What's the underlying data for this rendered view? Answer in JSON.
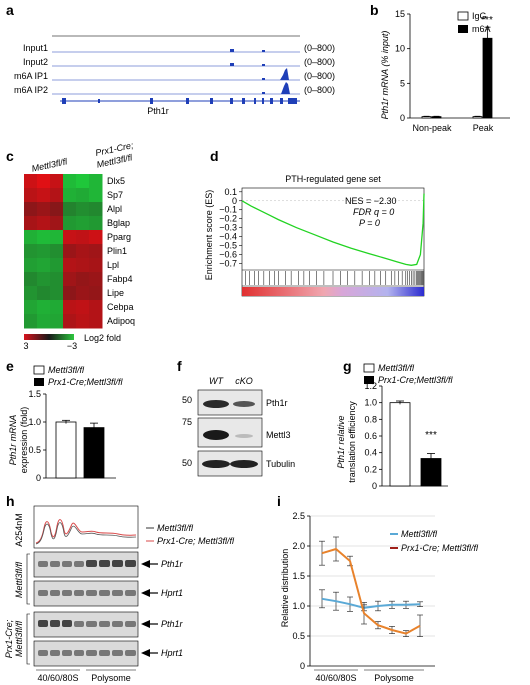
{
  "panels": {
    "a": {
      "label": "a",
      "tracks": [
        {
          "name": "Input1",
          "range": "(0–800)"
        },
        {
          "name": "Input2",
          "range": "(0–800)"
        },
        {
          "name": "m6A IP1",
          "range": "(0–800)"
        },
        {
          "name": "m6A IP2",
          "range": "(0–800)"
        }
      ],
      "gene": "Pth1r"
    },
    "b": {
      "label": "b",
      "ylabel": "Pth1r mRNA (% input)",
      "legend": [
        "IgG",
        "m6A"
      ],
      "categories": [
        "Non-peak",
        "Peak"
      ],
      "sig": "***"
    },
    "c": {
      "label": "c",
      "col1": "Mettl3fl/fl",
      "col2a": "Prx1-Cre;",
      "col2b": "Mettl3fl/fl",
      "genes": [
        "Dlx5",
        "Sp7",
        "Alpl",
        "Bglap",
        "Pparg",
        "Plin1",
        "Lpl",
        "Fabp4",
        "Lipe",
        "Cebpa",
        "Adipoq"
      ],
      "scale_min": "3",
      "scale_max": "−3",
      "scale_label": "Log2 fold"
    },
    "d": {
      "label": "d",
      "title": "PTH-regulated gene set",
      "ylabel": "Enrichment score (ES)",
      "yticks": [
        "0.1",
        "0",
        "−0.1",
        "−0.2",
        "−0.3",
        "−0.4",
        "−0.5",
        "−0.6",
        "−0.7"
      ],
      "nes": "NES = −2.30",
      "fdr": "FDR q = 0",
      "p": "P = 0"
    },
    "e": {
      "label": "e",
      "legend": [
        "Mettl3fl/fl",
        "Prx1-Cre;Mettl3fl/fl"
      ],
      "ylabel1": "Pth1r mRNA",
      "ylabel2": "expression (fold)",
      "yticks": [
        "0",
        "0.5",
        "1.0",
        "1.5"
      ]
    },
    "f": {
      "label": "f",
      "cols": [
        "WT",
        "cKO"
      ],
      "bands": [
        {
          "mw": "50",
          "name": "Pth1r"
        },
        {
          "mw": "75",
          "name": "Mettl3"
        },
        {
          "mw": "50",
          "name": "Tubulin"
        }
      ]
    },
    "g": {
      "label": "g",
      "legend": [
        "Mettl3fl/fl",
        "Prx1-Cre;Mettl3fl/fl"
      ],
      "ylabel1": "Pth1r relative",
      "ylabel2": "translation efficiency",
      "yticks": [
        "0",
        "0.2",
        "0.4",
        "0.6",
        "0.8",
        "1.0",
        "1.2"
      ],
      "sig": "***"
    },
    "h": {
      "label": "h",
      "a254": "A254nM",
      "legend": [
        "Mettl3fl/fl",
        "Prx1-Cre; Mettl3fl/fl"
      ],
      "group1": "Mettl3fl/fl",
      "group2a": "Prx1-Cre;",
      "group2b": "Mettl3fl/fl",
      "genes": [
        "Pth1r",
        "Hprt1",
        "Pth1r",
        "Hprt1"
      ],
      "xlabels": [
        "40/60/80S",
        "Polysome"
      ]
    },
    "i": {
      "label": "i",
      "ylabel": "Relative distribution",
      "yticks": [
        "0",
        "0.5",
        "1.0",
        "1.5",
        "2.0",
        "2.5"
      ],
      "legend": [
        "Mettl3fl/fl",
        "Prx1-Cre; Mettl3fl/fl"
      ],
      "xlabels": [
        "40/60/80S",
        "Polysome"
      ]
    }
  },
  "chart_data": [
    {
      "type": "bar",
      "panel": "b",
      "categories": [
        "Non-peak",
        "Peak"
      ],
      "series": [
        {
          "name": "IgG",
          "values": [
            0.2,
            0.2
          ]
        },
        {
          "name": "m6A",
          "values": [
            0.2,
            11.5
          ]
        }
      ],
      "errors": [
        [
          0.05,
          0.05
        ],
        [
          0.05,
          1.6
        ]
      ],
      "yticks": [
        0,
        5,
        10,
        15
      ],
      "ylim": [
        0,
        15
      ],
      "ylabel": "Pth1r mRNA (% input)",
      "colors": {
        "IgG": "#ffffff",
        "m6A": "#000000"
      }
    },
    {
      "type": "heatmap",
      "panel": "c",
      "rows": [
        "Dlx5",
        "Sp7",
        "Alpl",
        "Bglap",
        "Pparg",
        "Plin1",
        "Lpl",
        "Fabp4",
        "Lipe",
        "Cebpa",
        "Adipoq"
      ],
      "columns": [
        "Mettl3fl/fl",
        "Mettl3fl/fl",
        "Mettl3fl/fl",
        "Prx1-Cre;Mettl3fl/fl",
        "Prx1-Cre;Mettl3fl/fl",
        "Prx1-Cre;Mettl3fl/fl"
      ],
      "values": [
        [
          2.6,
          2.9,
          2.5,
          -2.6,
          -2.8,
          -2.5
        ],
        [
          2.3,
          2.5,
          2.2,
          -2.4,
          -2.3,
          -2.5
        ],
        [
          1.6,
          1.8,
          1.5,
          -1.6,
          -1.8,
          -1.7
        ],
        [
          2.0,
          2.2,
          1.9,
          -2.0,
          -2.1,
          -2.0
        ],
        [
          -2.4,
          -2.6,
          -2.5,
          2.5,
          2.4,
          2.6
        ],
        [
          -1.9,
          -2.0,
          -1.8,
          1.8,
          2.0,
          1.9
        ],
        [
          -2.1,
          -2.2,
          -2.0,
          2.2,
          2.1,
          2.0
        ],
        [
          -1.7,
          -1.9,
          -1.8,
          1.9,
          1.7,
          1.8
        ],
        [
          -1.9,
          -1.7,
          -1.8,
          1.6,
          1.8,
          1.7
        ],
        [
          -2.2,
          -2.4,
          -2.3,
          2.3,
          2.4,
          2.2
        ],
        [
          -2.0,
          -2.3,
          -2.2,
          2.1,
          2.3,
          2.2
        ]
      ],
      "scale": [
        3,
        -3
      ]
    },
    {
      "type": "line",
      "panel": "d",
      "title": "PTH-regulated gene set",
      "ylim": [
        -0.75,
        0.12
      ],
      "x": [
        0,
        0.05,
        0.1,
        0.15,
        0.2,
        0.3,
        0.4,
        0.5,
        0.6,
        0.7,
        0.8,
        0.85,
        0.9,
        0.93,
        0.96,
        0.98,
        0.995,
        1.0
      ],
      "y": [
        0,
        -0.06,
        -0.11,
        -0.16,
        -0.21,
        -0.3,
        -0.38,
        -0.46,
        -0.53,
        -0.59,
        -0.65,
        -0.68,
        -0.71,
        -0.72,
        -0.71,
        -0.6,
        -0.25,
        0.08
      ]
    },
    {
      "type": "bar",
      "panel": "e",
      "categories": [
        "Mettl3fl/fl",
        "Prx1-Cre;Mettl3fl/fl"
      ],
      "values": [
        1.0,
        0.9
      ],
      "errors": [
        0.03,
        0.08
      ],
      "ylim": [
        0,
        1.5
      ],
      "colors": [
        "#ffffff",
        "#000000"
      ]
    },
    {
      "type": "bar",
      "panel": "g",
      "categories": [
        "Mettl3fl/fl",
        "Prx1-Cre;Mettl3fl/fl"
      ],
      "values": [
        1.0,
        0.33
      ],
      "errors": [
        0.02,
        0.06
      ],
      "ylim": [
        0,
        1.2
      ],
      "colors": [
        "#ffffff",
        "#000000"
      ]
    },
    {
      "type": "line",
      "panel": "i",
      "x": [
        1,
        2,
        3,
        4,
        5,
        6,
        7,
        8
      ],
      "ylim": [
        0,
        2.5
      ],
      "series": [
        {
          "name": "Mettl3fl/fl",
          "color": "#5aa9d6",
          "values": [
            1.12,
            1.08,
            1.03,
            0.97,
            1.0,
            1.02,
            1.02,
            1.03
          ],
          "errors": [
            0.15,
            0.15,
            0.12,
            0.05,
            0.08,
            0.06,
            0.06,
            0.04
          ]
        },
        {
          "name": "Prx1-Cre; Mettl3fl/fl",
          "color": "#e8822b",
          "values": [
            1.88,
            1.95,
            1.75,
            0.88,
            0.68,
            0.6,
            0.54,
            0.67
          ],
          "errors": [
            0.2,
            0.2,
            0.08,
            0.18,
            0.06,
            0.06,
            0.05,
            0.18
          ]
        }
      ]
    }
  ]
}
